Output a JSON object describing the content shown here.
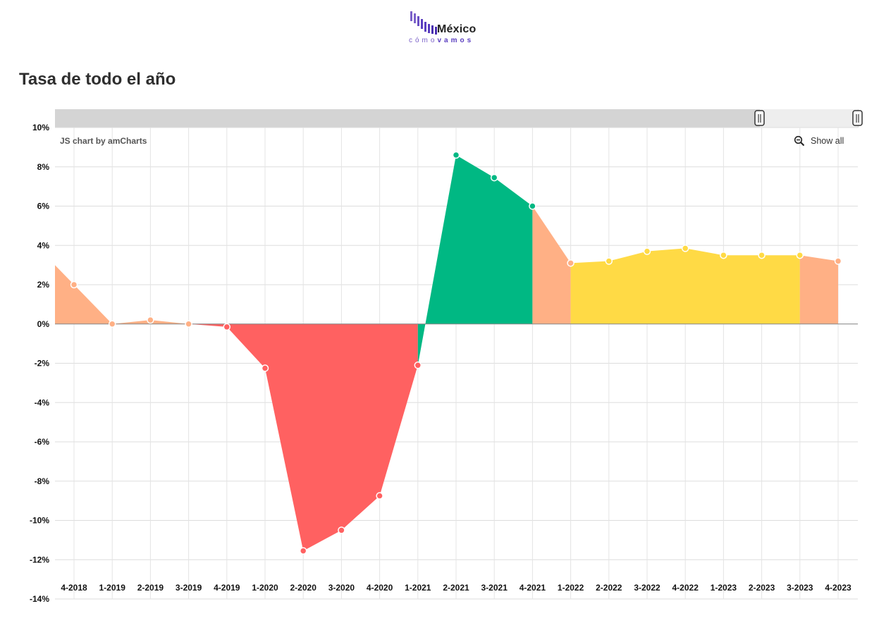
{
  "header": {
    "logo_word": "México",
    "logo_sub_1": "cómo",
    "logo_sub_2": "vamos",
    "title": "Tasa de todo el año"
  },
  "controls": {
    "credit": "JS chart by amCharts",
    "show_all": "Show all"
  },
  "colors": {
    "red": "#ff6161",
    "salmon": "#ffb085",
    "green": "#00b883",
    "yellow": "#ffda45",
    "scrollbar": "#d4d4d4"
  },
  "chart_data": {
    "type": "area",
    "title": "Tasa de todo el año",
    "categories": [
      "4-2018",
      "1-2019",
      "2-2019",
      "3-2019",
      "4-2019",
      "1-2020",
      "2-2020",
      "3-2020",
      "4-2020",
      "1-2021",
      "2-2021",
      "3-2021",
      "4-2021",
      "1-2022",
      "2-2022",
      "3-2022",
      "4-2022",
      "1-2023",
      "2-2023",
      "3-2023",
      "4-2023"
    ],
    "values": [
      2.0,
      0.0,
      0.2,
      0.0,
      -0.15,
      -2.25,
      -11.55,
      -10.5,
      -8.75,
      -2.1,
      8.6,
      7.45,
      6.0,
      3.1,
      3.2,
      3.7,
      3.85,
      3.5,
      3.5,
      3.5,
      3.2
    ],
    "value_colors": [
      "salmon",
      "salmon",
      "salmon",
      "salmon",
      "red",
      "red",
      "red",
      "red",
      "red",
      "red",
      "green",
      "green",
      "green",
      "salmon",
      "yellow",
      "yellow",
      "yellow",
      "yellow",
      "yellow",
      "yellow",
      "salmon"
    ],
    "ylim": [
      -14,
      10
    ],
    "ytick_step": 2,
    "ytick_suffix": "%",
    "grid": true,
    "legend": "none"
  }
}
